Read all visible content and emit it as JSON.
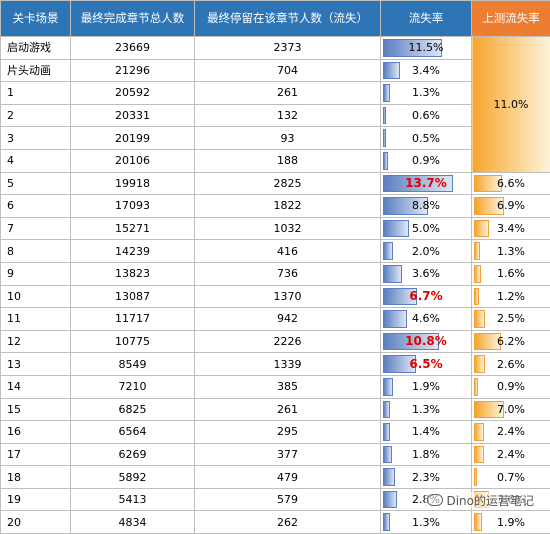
{
  "headers": [
    "关卡场景",
    "最终完成章节总人数",
    "最终停留在该章节人数（流失）",
    "流失率",
    "上测流失率"
  ],
  "rows": [
    {
      "scene": "启动游戏",
      "total": "23669",
      "stay": "2373",
      "rate": "11.5%",
      "rate_v": 11.5,
      "red": false
    },
    {
      "scene": "片头动画",
      "total": "21296",
      "stay": "704",
      "rate": "3.4%",
      "rate_v": 3.4,
      "red": false
    },
    {
      "scene": "1",
      "total": "20592",
      "stay": "261",
      "rate": "1.3%",
      "rate_v": 1.3,
      "red": false
    },
    {
      "scene": "2",
      "total": "20331",
      "stay": "132",
      "rate": "0.6%",
      "rate_v": 0.6,
      "red": false
    },
    {
      "scene": "3",
      "total": "20199",
      "stay": "93",
      "rate": "0.5%",
      "rate_v": 0.5,
      "red": false
    },
    {
      "scene": "4",
      "total": "20106",
      "stay": "188",
      "rate": "0.9%",
      "rate_v": 0.9,
      "red": false
    },
    {
      "scene": "5",
      "total": "19918",
      "stay": "2825",
      "rate": "13.7%",
      "rate_v": 13.7,
      "red": true,
      "prev": "6.6%",
      "prev_v": 6.6
    },
    {
      "scene": "6",
      "total": "17093",
      "stay": "1822",
      "rate": "8.8%",
      "rate_v": 8.8,
      "red": false,
      "prev": "6.9%",
      "prev_v": 6.9
    },
    {
      "scene": "7",
      "total": "15271",
      "stay": "1032",
      "rate": "5.0%",
      "rate_v": 5.0,
      "red": false,
      "prev": "3.4%",
      "prev_v": 3.4
    },
    {
      "scene": "8",
      "total": "14239",
      "stay": "416",
      "rate": "2.0%",
      "rate_v": 2.0,
      "red": false,
      "prev": "1.3%",
      "prev_v": 1.3
    },
    {
      "scene": "9",
      "total": "13823",
      "stay": "736",
      "rate": "3.6%",
      "rate_v": 3.6,
      "red": false,
      "prev": "1.6%",
      "prev_v": 1.6
    },
    {
      "scene": "10",
      "total": "13087",
      "stay": "1370",
      "rate": "6.7%",
      "rate_v": 6.7,
      "red": true,
      "prev": "1.2%",
      "prev_v": 1.2
    },
    {
      "scene": "11",
      "total": "11717",
      "stay": "942",
      "rate": "4.6%",
      "rate_v": 4.6,
      "red": false,
      "prev": "2.5%",
      "prev_v": 2.5
    },
    {
      "scene": "12",
      "total": "10775",
      "stay": "2226",
      "rate": "10.8%",
      "rate_v": 10.8,
      "red": true,
      "prev": "6.2%",
      "prev_v": 6.2
    },
    {
      "scene": "13",
      "total": "8549",
      "stay": "1339",
      "rate": "6.5%",
      "rate_v": 6.5,
      "red": true,
      "prev": "2.6%",
      "prev_v": 2.6
    },
    {
      "scene": "14",
      "total": "7210",
      "stay": "385",
      "rate": "1.9%",
      "rate_v": 1.9,
      "red": false,
      "prev": "0.9%",
      "prev_v": 0.9
    },
    {
      "scene": "15",
      "total": "6825",
      "stay": "261",
      "rate": "1.3%",
      "rate_v": 1.3,
      "red": false,
      "prev": "7.0%",
      "prev_v": 7.0
    },
    {
      "scene": "16",
      "total": "6564",
      "stay": "295",
      "rate": "1.4%",
      "rate_v": 1.4,
      "red": false,
      "prev": "2.4%",
      "prev_v": 2.4
    },
    {
      "scene": "17",
      "total": "6269",
      "stay": "377",
      "rate": "1.8%",
      "rate_v": 1.8,
      "red": false,
      "prev": "2.4%",
      "prev_v": 2.4
    },
    {
      "scene": "18",
      "total": "5892",
      "stay": "479",
      "rate": "2.3%",
      "rate_v": 2.3,
      "red": false,
      "prev": "0.7%",
      "prev_v": 0.7
    },
    {
      "scene": "19",
      "total": "5413",
      "stay": "579",
      "rate": "2.8%",
      "rate_v": 2.8,
      "red": false,
      "prev": "3.6%",
      "prev_v": 3.6
    },
    {
      "scene": "20",
      "total": "4834",
      "stay": "262",
      "rate": "1.3%",
      "rate_v": 1.3,
      "red": false,
      "prev": "1.9%",
      "prev_v": 1.9
    }
  ],
  "merged_prev": {
    "label": "11.0%",
    "value": 11.0
  },
  "bar_max": 14,
  "colors": {
    "header_blue": "#2e75b6",
    "header_orange": "#ed7d31",
    "bar_blue": "#5b7fc0",
    "bar_orange": "#f7a52a",
    "alert_red": "#e00000"
  },
  "watermark": "Dino的运营笔记"
}
